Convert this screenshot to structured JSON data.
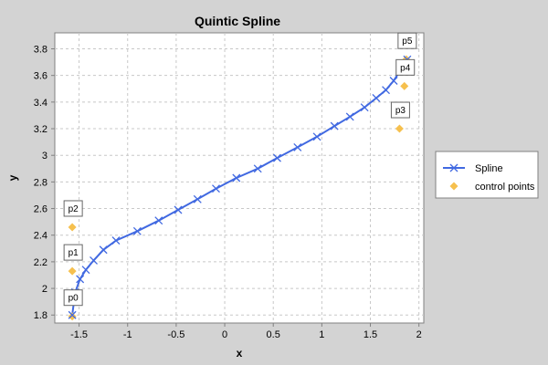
{
  "chart_data": {
    "type": "scatter",
    "title": "Quintic Spline",
    "xlabel": "x",
    "ylabel": "y",
    "xlim": [
      -1.75,
      2.05
    ],
    "ylim": [
      1.74,
      3.92
    ],
    "x_ticks": [
      "-1.5",
      "-1",
      "-0.5",
      "0",
      "0.5",
      "1",
      "1.5",
      "2"
    ],
    "x_tick_values": [
      -1.5,
      -1,
      -0.5,
      0,
      0.5,
      1,
      1.5,
      2
    ],
    "y_ticks": [
      "1.8",
      "2",
      "2.2",
      "2.4",
      "2.6",
      "2.8",
      "3",
      "3.2",
      "3.4",
      "3.6",
      "3.8"
    ],
    "y_tick_values": [
      1.8,
      2.0,
      2.2,
      2.4,
      2.6,
      2.8,
      3.0,
      3.2,
      3.4,
      3.6,
      3.8
    ],
    "grid": true,
    "legend_position": "right",
    "series": [
      {
        "name": "Spline",
        "color": "#4169e1",
        "marker": "x",
        "line": true,
        "x": [
          -1.57,
          -1.54,
          -1.49,
          -1.43,
          -1.35,
          -1.25,
          -1.12,
          -0.9,
          -0.68,
          -0.48,
          -0.28,
          -0.09,
          0.12,
          0.34,
          0.54,
          0.75,
          0.95,
          1.13,
          1.29,
          1.44,
          1.56,
          1.66,
          1.74,
          1.88
        ],
        "y": [
          1.8,
          1.97,
          2.07,
          2.14,
          2.21,
          2.29,
          2.36,
          2.43,
          2.51,
          2.59,
          2.67,
          2.75,
          2.83,
          2.9,
          2.98,
          3.06,
          3.14,
          3.22,
          3.29,
          3.36,
          3.43,
          3.49,
          3.56,
          3.72
        ]
      },
      {
        "name": "control points",
        "color": "#f6c04e",
        "marker": "diamond",
        "line": false,
        "x": [
          -1.57,
          -1.57,
          -1.57,
          1.8,
          1.85,
          1.87
        ],
        "y": [
          1.79,
          2.13,
          2.46,
          3.2,
          3.52,
          3.72
        ]
      }
    ],
    "annotations": [
      {
        "label": "p0",
        "x": -1.57,
        "y": 1.79
      },
      {
        "label": "p1",
        "x": -1.57,
        "y": 2.13
      },
      {
        "label": "p2",
        "x": -1.57,
        "y": 2.46
      },
      {
        "label": "p3",
        "x": 1.8,
        "y": 3.2
      },
      {
        "label": "p4",
        "x": 1.85,
        "y": 3.52
      },
      {
        "label": "p5",
        "x": 1.87,
        "y": 3.72
      }
    ]
  }
}
